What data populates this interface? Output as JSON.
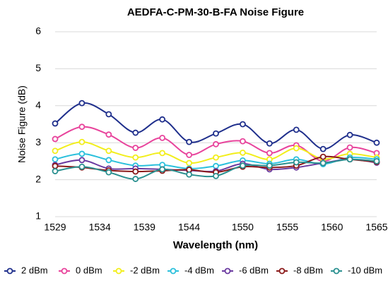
{
  "chart_data": {
    "type": "line",
    "title": "AEDFA-C-PM-30-B-FA Noise Figure",
    "x_label": "Wavelength (nm)",
    "y_label": "Noise Figure (dB)",
    "x": [
      1529,
      1532,
      1535,
      1538,
      1541,
      1544,
      1547,
      1550,
      1553,
      1556,
      1559,
      1562,
      1565
    ],
    "xlim": [
      1529,
      1565
    ],
    "xticks": [
      1529,
      1534,
      1539,
      1544,
      1550,
      1555,
      1560,
      1565
    ],
    "ylim": [
      1,
      6
    ],
    "yticks": [
      1,
      2,
      3,
      4,
      5,
      6
    ],
    "grid": true,
    "legend": "bottom",
    "series": [
      {
        "name": "2 dBm",
        "color": "#1f2f8c",
        "values": [
          3.52,
          4.07,
          3.77,
          3.27,
          3.63,
          3.02,
          3.25,
          3.5,
          2.98,
          3.35,
          2.83,
          3.21,
          3.0
        ]
      },
      {
        "name": "0 dBm",
        "color": "#e8449c",
        "values": [
          3.1,
          3.43,
          3.22,
          2.86,
          3.13,
          2.67,
          2.96,
          3.04,
          2.72,
          2.93,
          2.5,
          2.87,
          2.72
        ]
      },
      {
        "name": "-2 dBm",
        "color": "#f2ee1c",
        "values": [
          2.78,
          3.02,
          2.78,
          2.6,
          2.72,
          2.45,
          2.6,
          2.73,
          2.55,
          2.85,
          2.56,
          2.7,
          2.6
        ]
      },
      {
        "name": "-4 dBm",
        "color": "#2bc0dc",
        "values": [
          2.55,
          2.7,
          2.53,
          2.38,
          2.4,
          2.3,
          2.37,
          2.52,
          2.43,
          2.55,
          2.42,
          2.6,
          2.55
        ]
      },
      {
        "name": "-6 dBm",
        "color": "#6a3aa0",
        "values": [
          2.4,
          2.53,
          2.3,
          2.3,
          2.28,
          2.25,
          2.23,
          2.43,
          2.28,
          2.33,
          2.45,
          2.55,
          2.46
        ]
      },
      {
        "name": "-8 dBm",
        "color": "#8b1a1a",
        "values": [
          2.37,
          2.33,
          2.25,
          2.22,
          2.24,
          2.27,
          2.2,
          2.35,
          2.33,
          2.38,
          2.62,
          2.55,
          2.48
        ]
      },
      {
        "name": "-10 dBm",
        "color": "#2a9090",
        "values": [
          2.23,
          2.35,
          2.2,
          2.02,
          2.28,
          2.14,
          2.1,
          2.38,
          2.38,
          2.47,
          2.45,
          2.55,
          2.5
        ]
      }
    ]
  }
}
